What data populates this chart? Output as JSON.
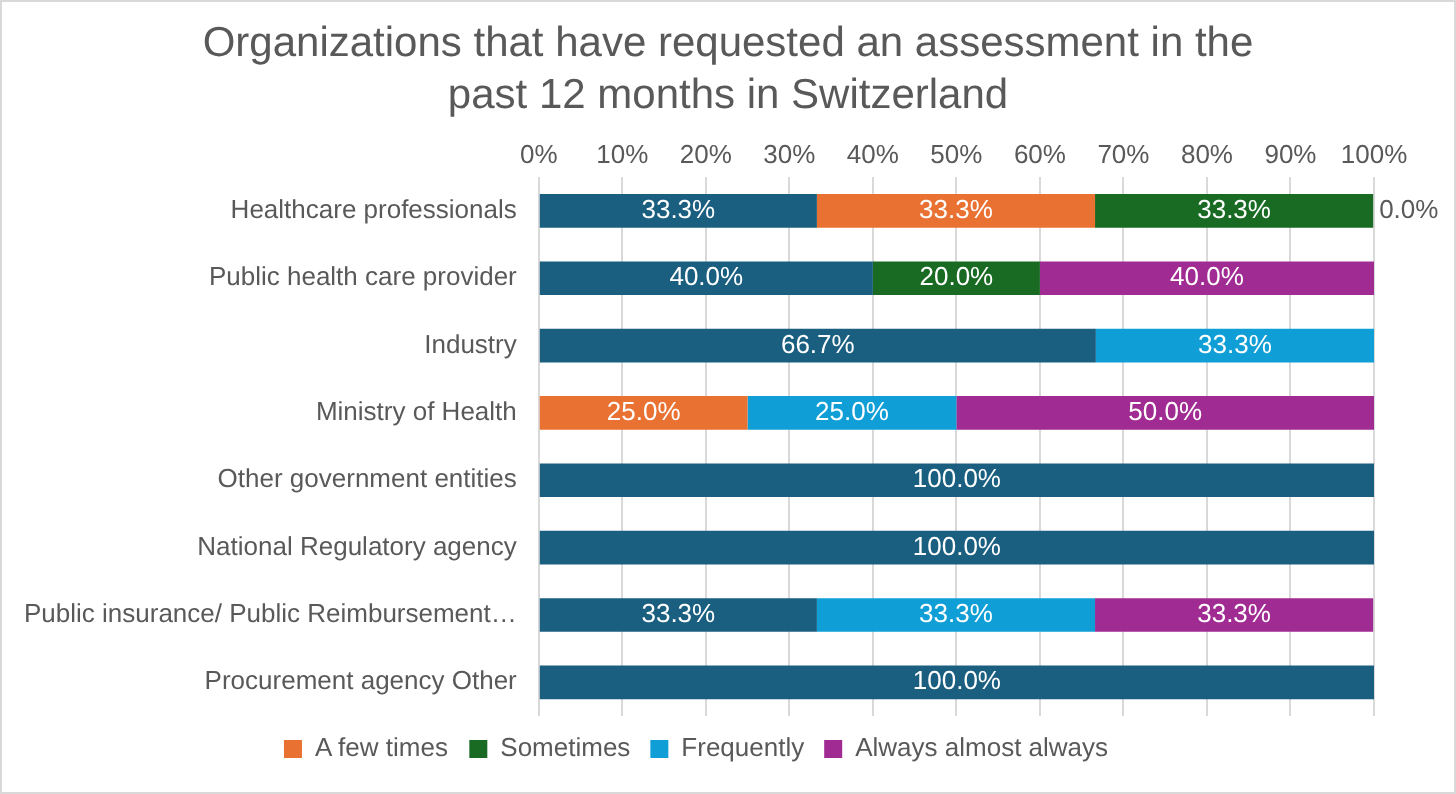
{
  "chart_data": {
    "type": "bar",
    "orientation": "horizontal",
    "stacked": true,
    "title": "Organizations that have requested an assessment in the past 12 months in Switzerland",
    "categories": [
      "Healthcare professionals",
      "Public health care provider",
      "Industry",
      "Ministry of Health",
      "Other government entities",
      "National Regulatory agency",
      "Public insurance/ Public Reimbursement…",
      "Procurement agency Other"
    ],
    "series": [
      {
        "color": "#1a5e80",
        "values": [
          33.3,
          40,
          66.7,
          null,
          100,
          100,
          33.3,
          100
        ],
        "value_labels": [
          "33.3%",
          "40.0%",
          "66.7%",
          null,
          "100.0%",
          "100.0%",
          "33.3%",
          "100.0%"
        ]
      },
      {
        "name": "A few times",
        "color": "#e97132",
        "values": [
          33.3,
          null,
          null,
          25,
          null,
          null,
          null,
          null
        ],
        "value_labels": [
          "33.3%",
          null,
          null,
          "25.0%",
          null,
          null,
          null,
          null
        ]
      },
      {
        "name": "Sometimes",
        "color": "#196b24",
        "values": [
          33.3,
          20,
          null,
          null,
          null,
          null,
          null,
          null
        ],
        "value_labels": [
          "33.3%",
          "20.0%",
          null,
          null,
          null,
          null,
          null,
          null
        ]
      },
      {
        "name": "Frequently",
        "color": "#0f9ed5",
        "values": [
          null,
          null,
          33.3,
          25,
          null,
          null,
          33.3,
          null
        ],
        "value_labels": [
          null,
          null,
          "33.3%",
          "25.0%",
          null,
          null,
          "33.3%",
          null
        ]
      },
      {
        "name": "Always almost always",
        "color": "#a02b93",
        "values": [
          0,
          40,
          null,
          50,
          null,
          null,
          33.3,
          null
        ],
        "value_labels": [
          "0.0%",
          "40.0%",
          null,
          "50.0%",
          null,
          null,
          "33.3%",
          null
        ]
      }
    ],
    "xlim": [
      0,
      100
    ],
    "xticks": [
      {
        "value": 0,
        "label": "0%"
      },
      {
        "value": 10,
        "label": "10%"
      },
      {
        "value": 20,
        "label": "20%"
      },
      {
        "value": 30,
        "label": "30%"
      },
      {
        "value": 40,
        "label": "40%"
      },
      {
        "value": 50,
        "label": "50%"
      },
      {
        "value": 60,
        "label": "60%"
      },
      {
        "value": 70,
        "label": "70%"
      },
      {
        "value": 80,
        "label": "80%"
      },
      {
        "value": 90,
        "label": "90%"
      },
      {
        "value": 100,
        "label": "100%"
      }
    ],
    "grid": "x",
    "legend": "bottom"
  }
}
